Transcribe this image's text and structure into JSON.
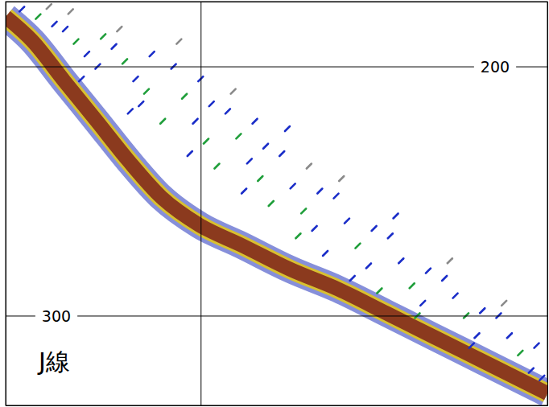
{
  "chart_data": {
    "type": "scatter",
    "xlim": [
      0,
      100
    ],
    "ylim": [
      336,
      174
    ],
    "xticks": [
      36
    ],
    "yticks": [
      200,
      300
    ],
    "grid": true,
    "tick_labels": "y",
    "annotations": [
      {
        "text": "J線"
      }
    ],
    "series": [
      {
        "type": "line",
        "color": "#8b3a1e",
        "x": [
          0,
          4.9,
          10.8,
          16.8,
          22.7,
          28.7,
          35.8,
          43.5,
          52.5,
          61.4,
          70.3,
          79.2,
          88.1,
          100
        ],
        "values": [
          180.1,
          189.7,
          205.8,
          221.9,
          237.9,
          252.4,
          263.7,
          271.7,
          281.4,
          289.4,
          299.0,
          308.7,
          318.3,
          331.2
        ]
      },
      {
        "type": "scatter",
        "marker": "dash",
        "x": [
          3,
          6,
          9,
          8,
          11,
          13,
          15,
          17,
          12,
          18,
          14,
          20,
          22,
          24,
          26,
          21,
          27,
          25,
          29,
          23,
          31,
          33,
          35,
          37,
          32,
          38,
          34,
          39,
          36,
          41,
          43,
          45,
          47,
          42,
          48,
          44,
          49,
          46,
          51,
          53,
          55,
          57,
          52,
          58,
          54,
          59,
          56,
          61,
          63,
          65,
          67,
          62,
          68,
          64,
          69,
          71,
          73,
          75,
          77,
          72,
          78,
          76,
          81,
          83,
          85,
          87,
          82,
          88,
          86,
          91,
          93,
          95,
          97,
          92,
          98,
          99
        ],
        "values": [
          177,
          180,
          183,
          176,
          185,
          190,
          195,
          200,
          178,
          188,
          205,
          192,
          198,
          205,
          210,
          185,
          195,
          215,
          222,
          218,
          200,
          212,
          222,
          230,
          190,
          215,
          235,
          240,
          205,
          218,
          228,
          238,
          245,
          210,
          232,
          250,
          255,
          222,
          235,
          248,
          258,
          265,
          225,
          250,
          268,
          275,
          240,
          252,
          262,
          272,
          280,
          245,
          265,
          285,
          290,
          268,
          278,
          288,
          295,
          260,
          282,
          300,
          285,
          292,
          300,
          308,
          278,
          298,
          312,
          300,
          308,
          315,
          322,
          295,
          312,
          325
        ],
        "colors": [
          "#1a2dc8",
          "#1f9e3a",
          "#1a2dc8",
          "#8a8a8a",
          "#1a2dc8",
          "#1f9e3a",
          "#1a2dc8",
          "#1a2dc8",
          "#8a8a8a",
          "#1f9e3a",
          "#1a2dc8",
          "#1a2dc8",
          "#1f9e3a",
          "#1a2dc8",
          "#1f9e3a",
          "#8a8a8a",
          "#1a2dc8",
          "#1a2dc8",
          "#1f9e3a",
          "#1a2dc8",
          "#1a2dc8",
          "#1f9e3a",
          "#1a2dc8",
          "#1f9e3a",
          "#8a8a8a",
          "#1a2dc8",
          "#1a2dc8",
          "#1f9e3a",
          "#1a2dc8",
          "#1a2dc8",
          "#1f9e3a",
          "#1a2dc8",
          "#1f9e3a",
          "#8a8a8a",
          "#1a2dc8",
          "#1a2dc8",
          "#1f9e3a",
          "#1a2dc8",
          "#1a2dc8",
          "#1a2dc8",
          "#1f9e3a",
          "#1a2dc8",
          "#1a2dc8",
          "#1a2dc8",
          "#1f9e3a",
          "#1a2dc8",
          "#8a8a8a",
          "#1a2dc8",
          "#1a2dc8",
          "#1f9e3a",
          "#1a2dc8",
          "#8a8a8a",
          "#1a2dc8",
          "#1a2dc8",
          "#1f9e3a",
          "#1a2dc8",
          "#1a2dc8",
          "#1f9e3a",
          "#1a2dc8",
          "#1a2dc8",
          "#1a2dc8",
          "#1f9e3a",
          "#1a2dc8",
          "#1a2dc8",
          "#1f9e3a",
          "#1a2dc8",
          "#8a8a8a",
          "#1a2dc8",
          "#1a2dc8",
          "#1a2dc8",
          "#1a2dc8",
          "#1f9e3a",
          "#1a2dc8",
          "#8a8a8a",
          "#1a2dc8",
          "#1a2dc8"
        ]
      }
    ]
  }
}
